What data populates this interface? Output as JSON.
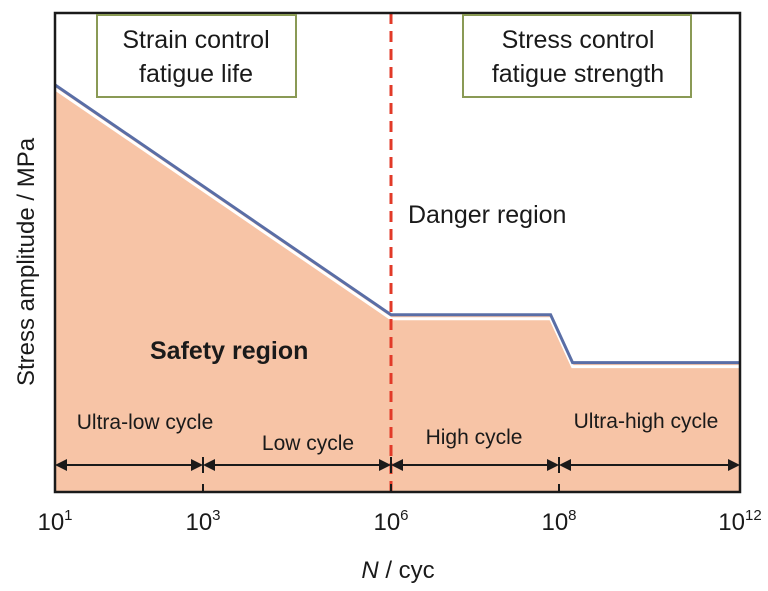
{
  "chart_data": {
    "type": "area",
    "title": "",
    "xlabel_italic": "N",
    "xlabel_rest": " / cyc",
    "ylabel": "Stress amplitude / MPa",
    "x_scale": "log",
    "x_ticks": [
      {
        "base": "10",
        "exp": "1",
        "value": 1
      },
      {
        "base": "10",
        "exp": "3",
        "value": 3
      },
      {
        "base": "10",
        "exp": "6",
        "value": 6
      },
      {
        "base": "10",
        "exp": "8",
        "value": 8
      },
      {
        "base": "10",
        "exp": "12",
        "value": 12
      }
    ],
    "curve": {
      "name": "",
      "points": [
        {
          "log10_N": 1,
          "stress": 0.85
        },
        {
          "log10_N": 6,
          "stress": 0.37
        },
        {
          "log10_N": 7.9,
          "stress": 0.37
        },
        {
          "log10_N": 8.3,
          "stress": 0.27
        },
        {
          "log10_N": 12,
          "stress": 0.27
        }
      ]
    },
    "ylim": [
      0,
      1
    ],
    "divider_at": 6,
    "boxes": [
      {
        "line1": "Strain control",
        "line2": "fatigue life"
      },
      {
        "line1": "Stress control",
        "line2": "fatigue strength"
      }
    ],
    "regions": {
      "danger": "Danger region",
      "safety": "Safety region"
    },
    "regimes": [
      {
        "label": "Ultra-low cycle",
        "from": 1,
        "to": 3
      },
      {
        "label": "Low cycle",
        "from": 3,
        "to": 6
      },
      {
        "label": "High cycle",
        "from": 6,
        "to": 8
      },
      {
        "label": "Ultra-high cycle",
        "from": 8,
        "to": 12
      }
    ],
    "colors": {
      "fill": "#f7c4a6",
      "curve": "#5a6ea6",
      "divider": "#e23a28",
      "box_border": "#8a9a55",
      "arrow": "#1a1a1a"
    }
  }
}
